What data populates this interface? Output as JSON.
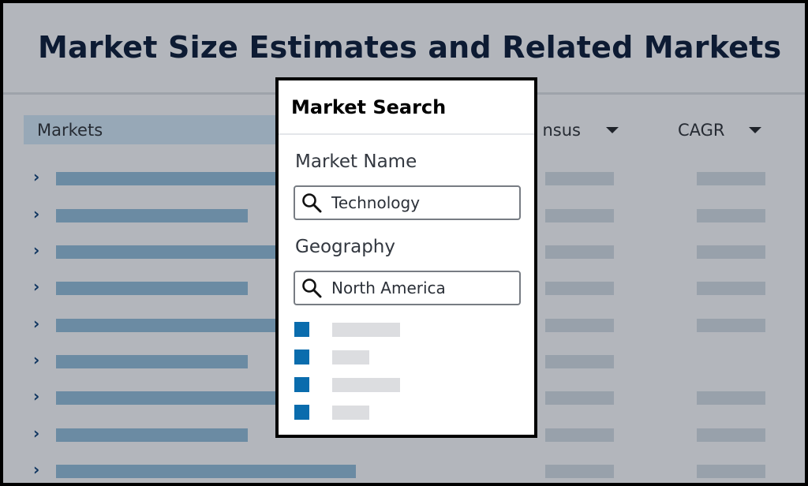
{
  "page": {
    "title": "Market Size Estimates and Related Markets"
  },
  "table": {
    "columns": [
      {
        "label": "Markets"
      },
      {
        "label": "nsus"
      },
      {
        "label": "CAGR"
      }
    ],
    "rows": [
      {
        "has_cagr": true
      },
      {
        "has_cagr": true
      },
      {
        "has_cagr": true
      },
      {
        "has_cagr": true
      },
      {
        "has_cagr": true
      },
      {
        "has_cagr": false
      },
      {
        "has_cagr": true
      },
      {
        "has_cagr": true
      },
      {
        "has_cagr": true
      }
    ]
  },
  "modal": {
    "title": "Market Search",
    "market_name_label": "Market Name",
    "market_name_value": "Technology",
    "geography_label": "Geography",
    "geography_value": "North America",
    "options": [
      {
        "checked": true
      },
      {
        "checked": true
      },
      {
        "checked": true
      },
      {
        "checked": true
      }
    ]
  },
  "colors": {
    "accent": "#0a6cad",
    "title": "#0d1b33",
    "market_bar": "#6b8ba3",
    "value_bar": "#98a1ab",
    "overlay_bg": "#b3b6bc"
  },
  "icons": {
    "row_expand": "chevron-right-icon",
    "sort": "caret-down-icon",
    "search": "search-icon"
  }
}
